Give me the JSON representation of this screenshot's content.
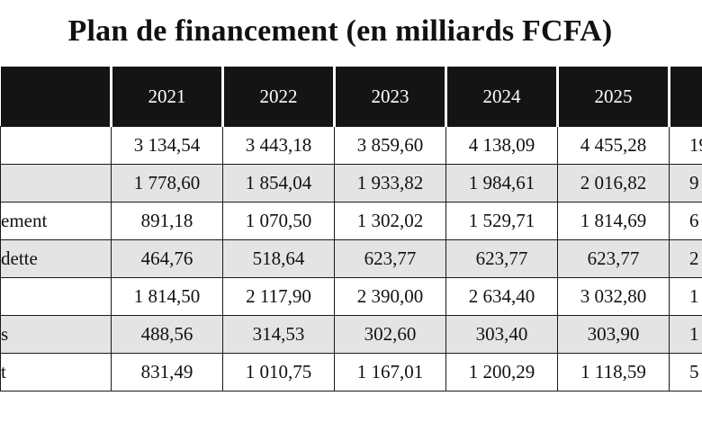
{
  "title": "Plan de financement (en milliards FCFA)",
  "columns": [
    "",
    "2021",
    "2022",
    "2023",
    "2024",
    "2025",
    ""
  ],
  "rows": [
    {
      "label": "",
      "values": [
        "3 134,54",
        "3 443,18",
        "3 859,60",
        "4 138,09",
        "4 455,28"
      ],
      "total": "19",
      "shaded": false
    },
    {
      "label": "",
      "values": [
        "1 778,60",
        "1 854,04",
        "1 933,82",
        "1 984,61",
        "2 016,82"
      ],
      "total": "9",
      "shaded": true
    },
    {
      "label": "ement",
      "values": [
        "891,18",
        "1 070,50",
        "1 302,02",
        "1 529,71",
        "1 814,69"
      ],
      "total": "6",
      "shaded": false
    },
    {
      "label": "dette",
      "values": [
        "464,76",
        "518,64",
        "623,77",
        "623,77",
        "623,77"
      ],
      "total": "2",
      "shaded": true
    },
    {
      "label": "",
      "values": [
        "1 814,50",
        "2 117,90",
        "2 390,00",
        "2 634,40",
        "3 032,80"
      ],
      "total": "1",
      "shaded": false
    },
    {
      "label": "s",
      "values": [
        "488,56",
        "314,53",
        "302,60",
        "303,40",
        "303,90"
      ],
      "total": "1",
      "shaded": true
    },
    {
      "label": "t",
      "values": [
        "831,49",
        "1 010,75",
        "1 167,01",
        "1 200,29",
        "1 118,59"
      ],
      "total": "5",
      "shaded": false
    }
  ]
}
